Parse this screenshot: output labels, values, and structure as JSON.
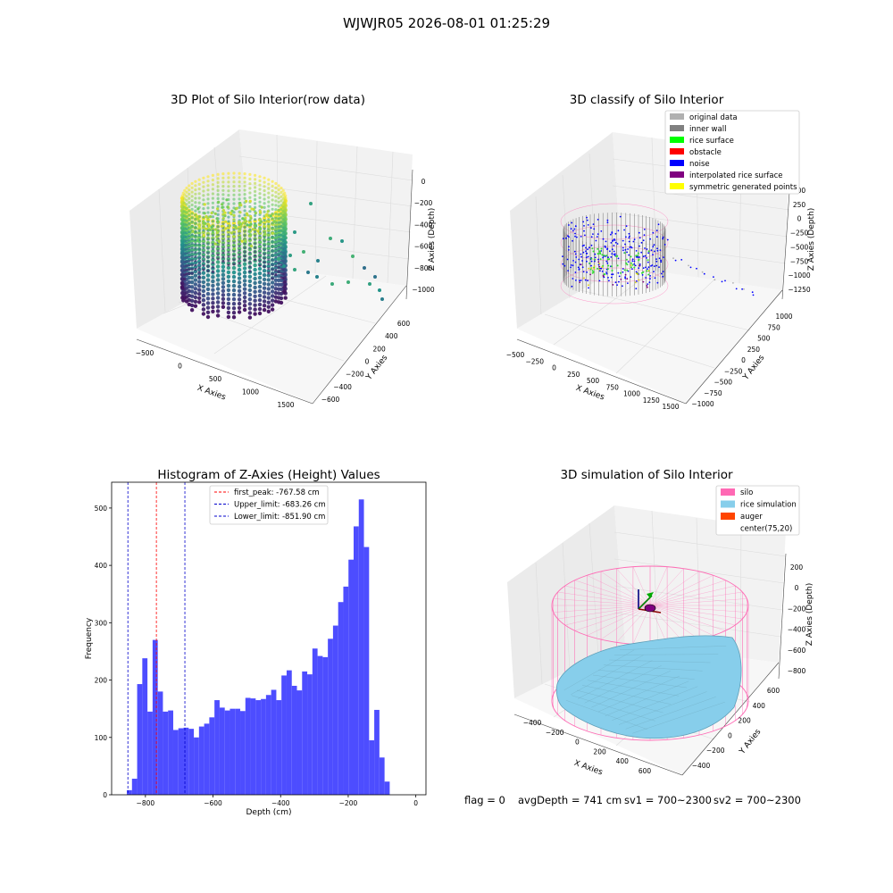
{
  "suptitle": "WJWJR05 2026-08-01 01:25:29",
  "status": {
    "flag": "flag = 0",
    "avg_depth": "avgDepth = 741 cm",
    "sv1": "sv1 = 700~2300",
    "sv2": "sv2 = 700~2300"
  },
  "colors": {
    "hist_bar": "#4d4dff",
    "first_peak_line": "#ff0000",
    "limit_line": "#0000cc",
    "silo": "#ff69b4",
    "rice_simulation": "#87ceeb",
    "auger": "#ff4500"
  },
  "chart_data": [
    {
      "type": "scatter3d",
      "title": "3D Plot of Silo Interior(row data)",
      "xlabel": "X Axies",
      "ylabel": "Y Axies",
      "zlabel": "Z Axies (Depth)",
      "x_ticks": [
        "−500",
        "0",
        "500",
        "1000",
        "1500"
      ],
      "y_ticks": [
        "−600",
        "−400",
        "−200",
        "0",
        "200",
        "400",
        "600"
      ],
      "z_ticks": [
        "−1000",
        "−800",
        "−600",
        "−400",
        "−200",
        "0"
      ],
      "colormap": "viridis"
    },
    {
      "type": "scatter3d",
      "title": "3D classify of Silo Interior",
      "xlabel": "X Axies",
      "ylabel": "Y Axies",
      "zlabel": "Z Axies (Depth)",
      "x_ticks": [
        "−500",
        "−250",
        "0",
        "250",
        "500",
        "750",
        "1000",
        "1250",
        "1500"
      ],
      "y_ticks": [
        "−1000",
        "−750",
        "−500",
        "−250",
        "0",
        "250",
        "500",
        "750",
        "1000"
      ],
      "z_ticks": [
        "−1250",
        "−1000",
        "−750",
        "−500",
        "−250",
        "0",
        "250",
        "500"
      ],
      "legend": [
        {
          "label": "original data",
          "color": "#b0b0b0"
        },
        {
          "label": "inner wall",
          "color": "#808080"
        },
        {
          "label": "rice surface",
          "color": "#00ff00"
        },
        {
          "label": "obstacle",
          "color": "#ff0000"
        },
        {
          "label": "noise",
          "color": "#0000ff"
        },
        {
          "label": "interpolated rice surface",
          "color": "#800080"
        },
        {
          "label": "symmetric generated points",
          "color": "#ffff00"
        }
      ],
      "legend_position": "top-right"
    },
    {
      "type": "bar",
      "title": "Histogram of Z-Axies (Height) Values",
      "xlabel": "Depth (cm)",
      "ylabel": "Frequency",
      "bin_start": -855,
      "bin_width": 15.25,
      "values": [
        8,
        28,
        193,
        238,
        145,
        270,
        180,
        145,
        147,
        113,
        116,
        117,
        115,
        100,
        119,
        124,
        135,
        165,
        152,
        147,
        150,
        150,
        146,
        169,
        168,
        165,
        167,
        174,
        183,
        165,
        208,
        217,
        190,
        182,
        215,
        210,
        255,
        242,
        240,
        272,
        295,
        336,
        363,
        410,
        468,
        515,
        432,
        95,
        148,
        65,
        23
      ],
      "xlim": [
        -900,
        30
      ],
      "ylim": [
        0,
        545
      ],
      "x_ticks": [
        -800,
        -600,
        -400,
        -200,
        0
      ],
      "x_tick_labels": [
        "−800",
        "−600",
        "−400",
        "−200",
        "0"
      ],
      "y_ticks": [
        0,
        100,
        200,
        300,
        400,
        500
      ],
      "vlines": [
        {
          "name": "first_peak",
          "label": "first_peak: -767.58 cm",
          "x": -767.58,
          "color": "#ff0000"
        },
        {
          "name": "upper_limit",
          "label": "Upper_limit: -683.26 cm",
          "x": -683.26,
          "color": "#0000cc"
        },
        {
          "name": "lower_limit",
          "label": "Lower_limit: -851.90 cm",
          "x": -851.9,
          "color": "#0000cc"
        }
      ],
      "legend_position": "top-center"
    },
    {
      "type": "surface3d",
      "title": "3D simulation of Silo Interior",
      "xlabel": "X Axies",
      "ylabel": "Y Axies",
      "zlabel": "Z Axies (Depth)",
      "x_ticks": [
        "−400",
        "−200",
        "0",
        "200",
        "400",
        "600"
      ],
      "y_ticks": [
        "−400",
        "−200",
        "0",
        "200",
        "400",
        "600"
      ],
      "z_ticks": [
        "−800",
        "−600",
        "−400",
        "−200",
        "0",
        "200"
      ],
      "legend": [
        {
          "label": "silo",
          "color": "#ff69b4"
        },
        {
          "label": "rice simulation",
          "color": "#87ceeb"
        },
        {
          "label": "auger",
          "color": "#ff4500"
        },
        {
          "label": "center(75,20)",
          "color": ""
        }
      ],
      "legend_position": "top-right"
    }
  ]
}
